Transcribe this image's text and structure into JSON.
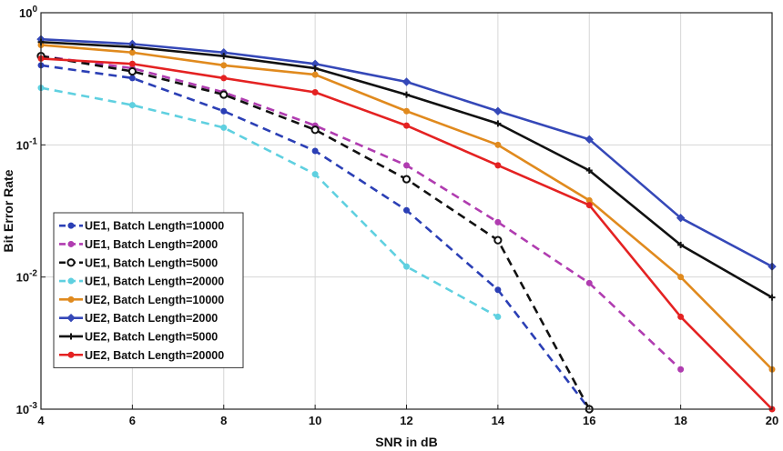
{
  "chart_data": {
    "type": "line",
    "title": "",
    "xlabel": "SNR in dB",
    "ylabel": "Bit Error Rate",
    "xlim": [
      4,
      20
    ],
    "ylim": [
      0.001,
      1
    ],
    "y_scale": "log",
    "x_ticks": [
      4,
      6,
      8,
      10,
      12,
      14,
      16,
      18,
      20
    ],
    "y_ticks": [
      {
        "value": 1,
        "base": "10",
        "exp": "0"
      },
      {
        "value": 0.1,
        "base": "10",
        "exp": "-1"
      },
      {
        "value": 0.01,
        "base": "10",
        "exp": "-2"
      },
      {
        "value": 0.001,
        "base": "10",
        "exp": "-3"
      }
    ],
    "grid": true,
    "legend_position": "bottom-left",
    "series": [
      {
        "name": "UE1, Batch Length=10000",
        "color": "#2b3fb5",
        "dash": true,
        "marker": "dot",
        "x": [
          4,
          6,
          8,
          10,
          12,
          14,
          16
        ],
        "y": [
          0.4,
          0.32,
          0.18,
          0.09,
          0.032,
          0.008,
          0.001
        ]
      },
      {
        "name": "UE1, Batch Length=2000",
        "color": "#b03cb0",
        "dash": true,
        "marker": "dot",
        "x": [
          4,
          6,
          8,
          10,
          12,
          14,
          16,
          18
        ],
        "y": [
          0.47,
          0.38,
          0.25,
          0.14,
          0.07,
          0.026,
          0.009,
          0.002
        ]
      },
      {
        "name": "UE1, Batch Length=5000",
        "color": "#111111",
        "dash": true,
        "marker": "circle",
        "x": [
          4,
          6,
          8,
          10,
          12,
          14,
          16
        ],
        "y": [
          0.47,
          0.36,
          0.24,
          0.13,
          0.055,
          0.019,
          0.001
        ]
      },
      {
        "name": "UE1, Batch Length=20000",
        "color": "#5fd0e0",
        "dash": true,
        "marker": "dot",
        "x": [
          4,
          6,
          8,
          10,
          12,
          14
        ],
        "y": [
          0.27,
          0.2,
          0.135,
          0.06,
          0.012,
          0.005
        ]
      },
      {
        "name": "UE2, Batch Length=10000",
        "color": "#e08a1e",
        "dash": false,
        "marker": "dot",
        "x": [
          4,
          6,
          8,
          10,
          12,
          14,
          16,
          18,
          20
        ],
        "y": [
          0.57,
          0.5,
          0.4,
          0.34,
          0.18,
          0.1,
          0.038,
          0.01,
          0.002
        ]
      },
      {
        "name": "UE2, Batch Length=2000",
        "color": "#3548b8",
        "dash": false,
        "marker": "diamond",
        "x": [
          4,
          6,
          8,
          10,
          12,
          14,
          16,
          18,
          20
        ],
        "y": [
          0.63,
          0.58,
          0.5,
          0.41,
          0.3,
          0.18,
          0.11,
          0.028,
          0.012
        ]
      },
      {
        "name": "UE2, Batch Length=5000",
        "color": "#111111",
        "dash": false,
        "marker": "plus",
        "x": [
          4,
          6,
          8,
          10,
          12,
          14,
          16,
          18,
          20
        ],
        "y": [
          0.6,
          0.55,
          0.47,
          0.38,
          0.24,
          0.145,
          0.064,
          0.0175,
          0.007
        ]
      },
      {
        "name": "UE2, Batch Length=20000",
        "color": "#e42222",
        "dash": false,
        "marker": "dot",
        "x": [
          4,
          6,
          8,
          10,
          12,
          14,
          16,
          18,
          20
        ],
        "y": [
          0.45,
          0.41,
          0.32,
          0.25,
          0.14,
          0.07,
          0.035,
          0.005,
          0.001
        ]
      }
    ]
  }
}
